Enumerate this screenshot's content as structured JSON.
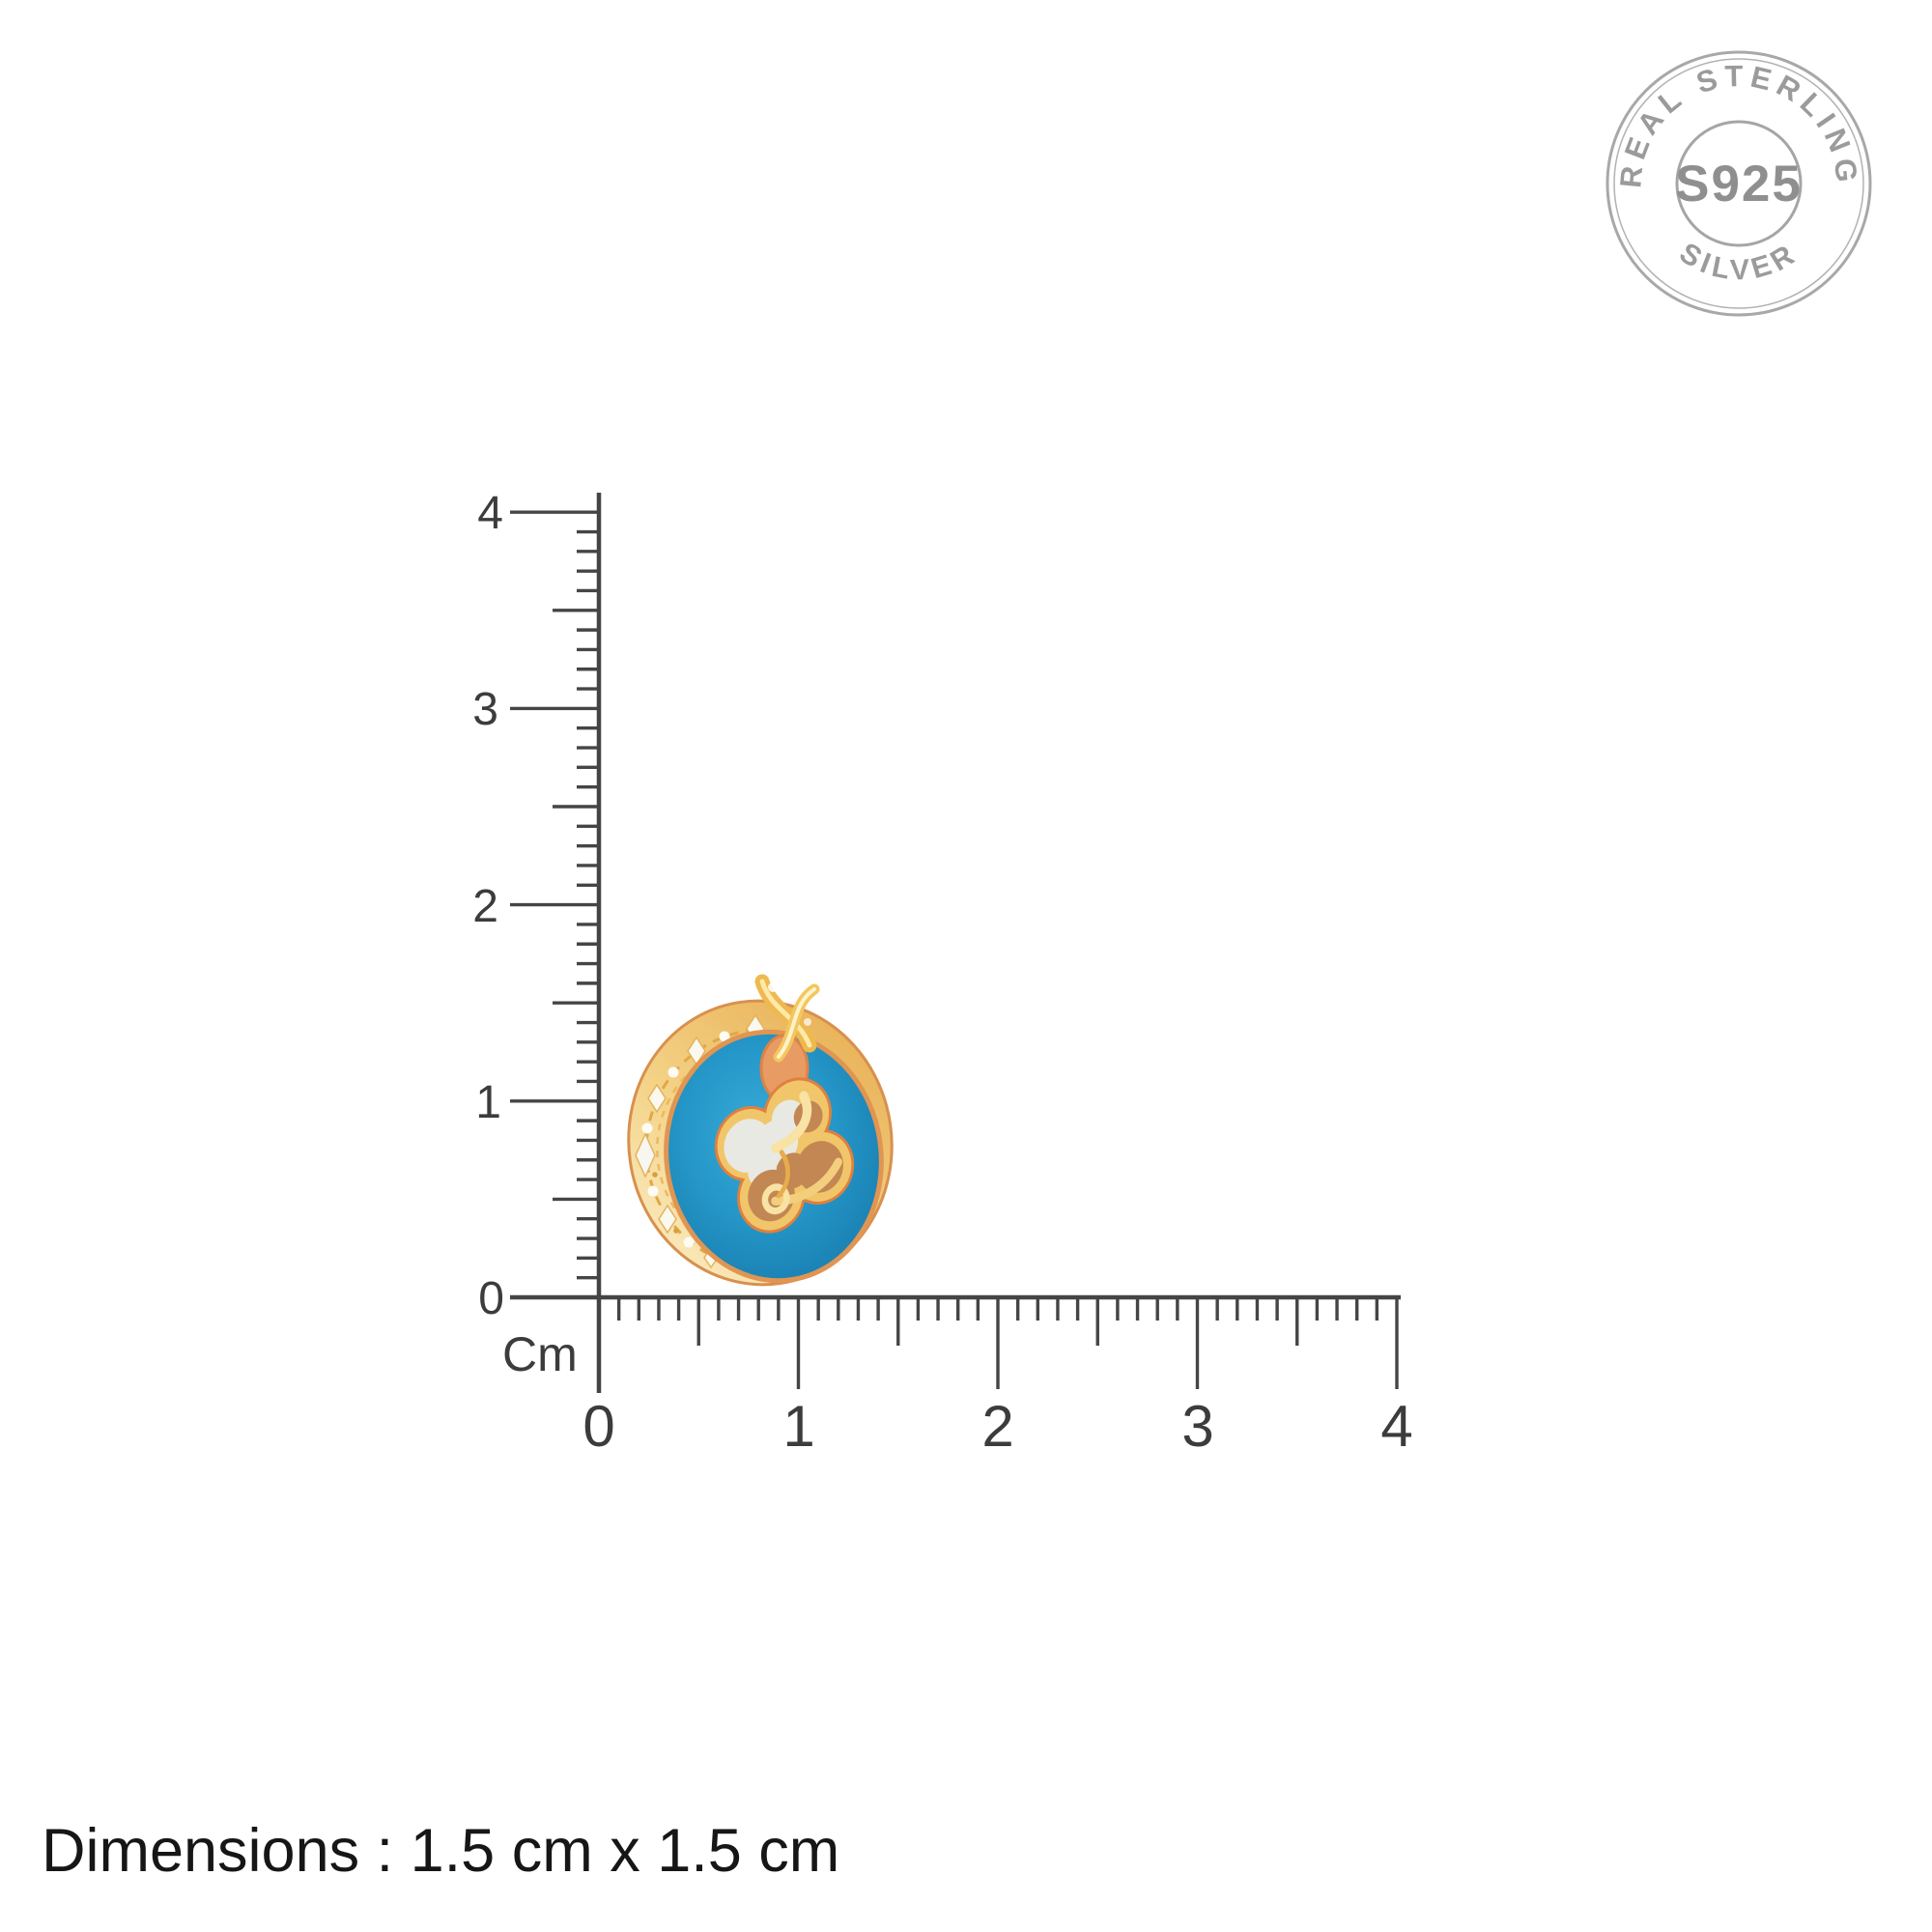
{
  "stamp": {
    "top_text": "REAL STERLING",
    "center_text": "S925",
    "bottom_text": "SILVER",
    "ring_color": "#a8a8a8",
    "text_color": "#9b9b9b"
  },
  "ruler": {
    "unit_label": "Cm",
    "vertical_labels": [
      "4",
      "3",
      "2",
      "1",
      "0"
    ],
    "horizontal_labels": [
      "0",
      "1",
      "2",
      "3",
      "4"
    ],
    "line_color": "#454545"
  },
  "bead": {
    "enamel_blue": "#2496C7",
    "gold": "#EFBD5C",
    "gold_light": "#F9E3AE",
    "rim_orange": "#DE9450",
    "pearl_white": "#E9E9E4",
    "amber": "#C28753"
  },
  "footer": {
    "dimensions_text": "Dimensions : 1.5 cm x 1.5 cm"
  }
}
